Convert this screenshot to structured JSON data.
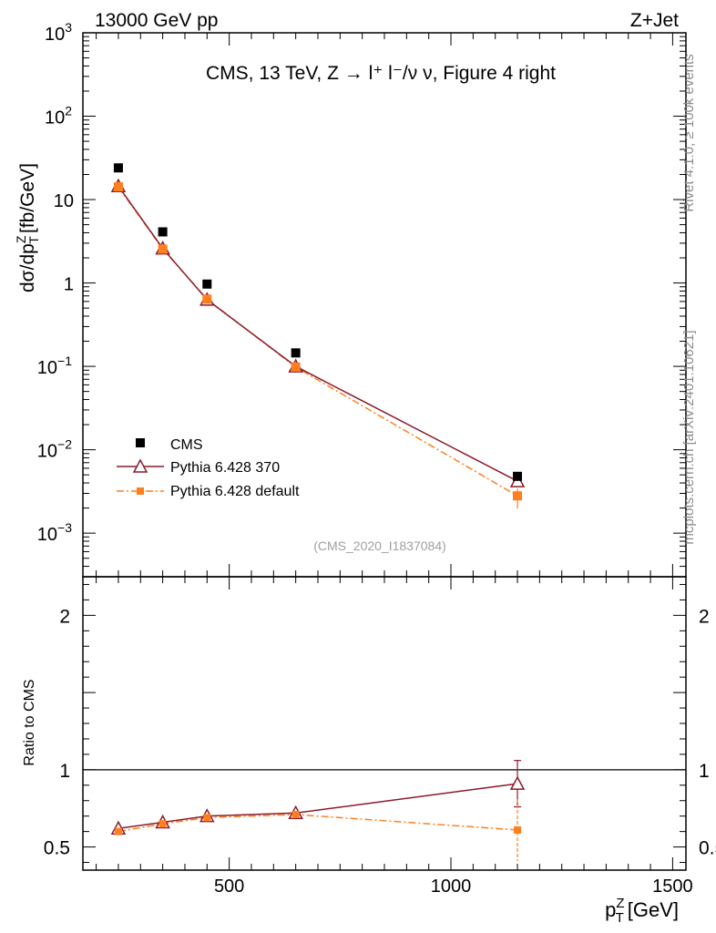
{
  "header": {
    "left": "13000 GeV pp",
    "right": "Z+Jet"
  },
  "side_text": {
    "top": "Rivet 4.1.0, ≥ 100k events",
    "bottom": "mcplots.cern.ch [arXiv:2401.10621]"
  },
  "chart_data": {
    "type": "line",
    "title": "CMS, 13 TeV, Z → l⁺ l⁻/ν ν, Figure 4 right",
    "analysis_id": "(CMS_2020_I1837084)",
    "xlabel_main": "p",
    "xlabel_sup": "Z",
    "xlabel_sub": "T",
    "xlabel_unit": "[GeV]",
    "ylabel_main": "dσ/dp",
    "ylabel_sup": "Z",
    "ylabel_sub": "T",
    "ylabel_unit": "[fb/GeV]",
    "ratio_ylabel": "Ratio to CMS",
    "xlim": [
      170,
      1530
    ],
    "ylim_log": [
      0.0003,
      1000
    ],
    "ratio_ylim": [
      0.35,
      2.25
    ],
    "x_ticks": [
      500,
      1000,
      1500
    ],
    "x_tick_labels": [
      "500",
      "1000",
      "1500"
    ],
    "y_ticks": [
      {
        "base": "10",
        "exp": "3",
        "value": 1000
      },
      {
        "base": "10",
        "exp": "2",
        "value": 100
      },
      {
        "base": "10",
        "exp": "",
        "value": 10
      },
      {
        "base": "1",
        "exp": "",
        "value": 1
      },
      {
        "base": "10",
        "exp": "−1",
        "value": 0.1
      },
      {
        "base": "10",
        "exp": "−2",
        "value": 0.01
      },
      {
        "base": "10",
        "exp": "−3",
        "value": 0.001
      }
    ],
    "ratio_ticks": [
      {
        "label": "0.5",
        "value": 0.5
      },
      {
        "label": "1",
        "value": 1
      },
      {
        "label": "2",
        "value": 2
      }
    ],
    "x": [
      250,
      350,
      450,
      650,
      1150
    ],
    "series": [
      {
        "name": "CMS",
        "color": "#000000",
        "marker": "square",
        "values": [
          24,
          4.1,
          0.97,
          0.145,
          0.0048
        ],
        "ratio": [
          1,
          1,
          1,
          1,
          1
        ]
      },
      {
        "name": "Pythia 6.428 370",
        "color": "#8b1a2b",
        "marker": "triangle",
        "values": [
          14.5,
          2.6,
          0.63,
          0.1,
          0.0042
        ],
        "ratio": [
          0.62,
          0.66,
          0.7,
          0.72,
          0.91
        ],
        "ratio_err": [
          0.01,
          0.01,
          0.02,
          0.03,
          0.15
        ]
      },
      {
        "name": "Pythia 6.428 default",
        "color": "#ff7f1e",
        "marker": "square",
        "values": [
          14.2,
          2.55,
          0.64,
          0.098,
          0.0028
        ],
        "ratio": [
          0.6,
          0.65,
          0.69,
          0.71,
          0.61
        ],
        "ratio_err": [
          0.01,
          0.01,
          0.02,
          0.03,
          0.2
        ]
      }
    ]
  }
}
